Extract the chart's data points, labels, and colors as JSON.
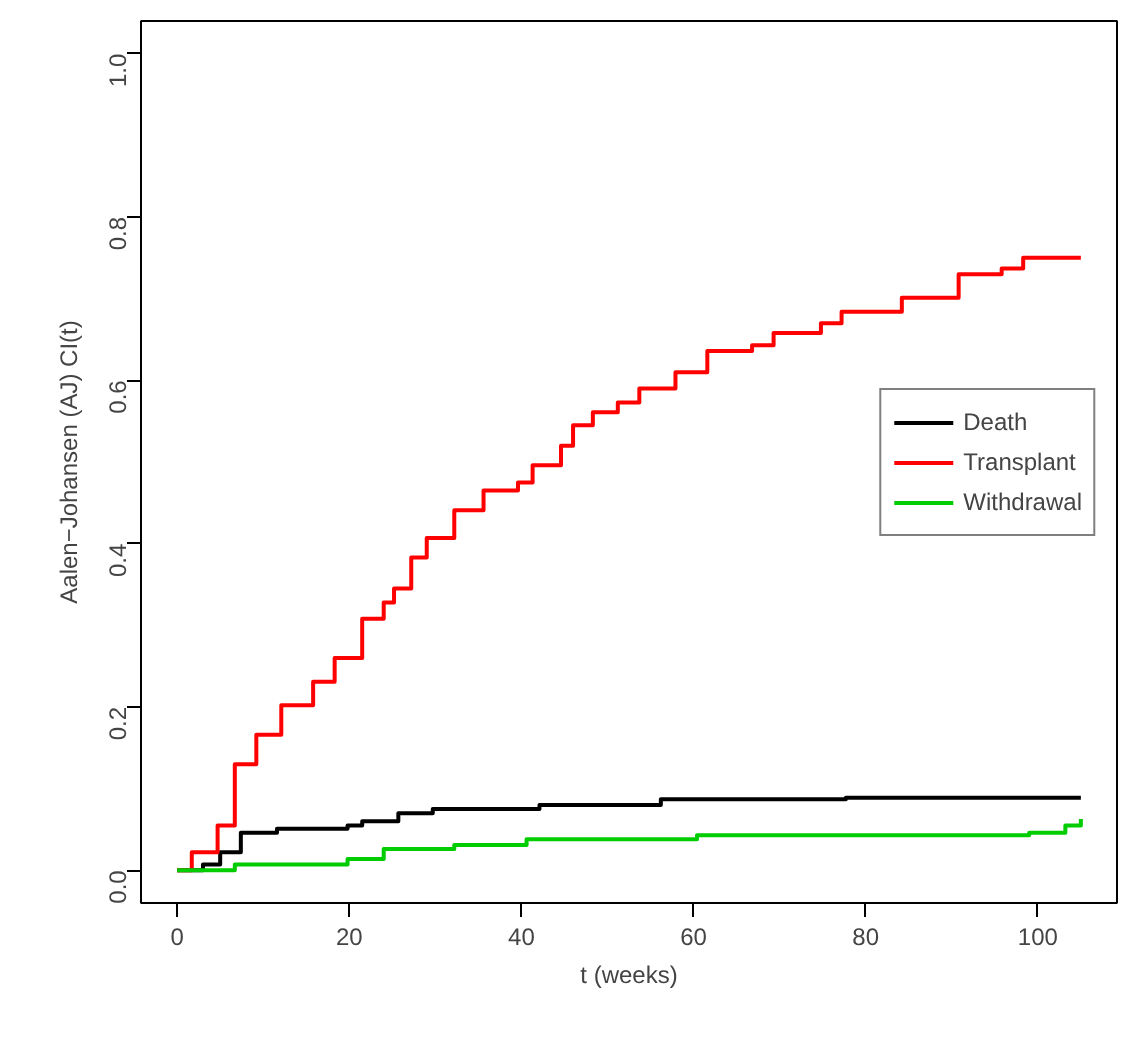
{
  "chart_data": {
    "type": "step",
    "xlabel": "t (weeks)",
    "ylabel": "Aalen−Johansen (AJ) CI(t)",
    "xlim": [
      -4.2,
      109.2
    ],
    "ylim": [
      -0.04,
      1.04
    ],
    "xticks": [
      0,
      20,
      40,
      60,
      80,
      100
    ],
    "yticks": [
      {
        "value": 0,
        "label": "0.0"
      },
      {
        "value": 0.2,
        "label": "0.2"
      },
      {
        "value": 0.4,
        "label": "0.4"
      },
      {
        "value": 0.6,
        "label": "0.6"
      },
      {
        "value": 0.8,
        "label": "0.8"
      },
      {
        "value": 1,
        "label": "1.0"
      }
    ],
    "grid": false,
    "legend": "right",
    "line_style": "solid",
    "marker": "none",
    "series": [
      {
        "name": "Death",
        "color": "#000000",
        "x": [
          0,
          3.0,
          5.0,
          7.4,
          11.6,
          19.8,
          21.5,
          25.7,
          29.7,
          42.1,
          56.2,
          77.7,
          105
        ],
        "values": [
          0,
          0.007,
          0.022,
          0.046,
          0.051,
          0.055,
          0.06,
          0.07,
          0.075,
          0.08,
          0.087,
          0.089,
          0.089
        ]
      },
      {
        "name": "Transplant",
        "color": "#ff0000",
        "x": [
          0,
          1.7,
          4.7,
          6.7,
          9.2,
          12.1,
          15.8,
          18.3,
          21.5,
          24.0,
          25.2,
          27.2,
          29.0,
          32.2,
          35.6,
          39.6,
          41.3,
          44.6,
          46.0,
          48.3,
          51.2,
          53.7,
          57.9,
          61.6,
          66.8,
          69.3,
          74.8,
          77.2,
          84.2,
          90.8,
          95.8,
          98.3,
          105
        ],
        "values": [
          0,
          0.022,
          0.055,
          0.13,
          0.166,
          0.202,
          0.231,
          0.26,
          0.308,
          0.328,
          0.345,
          0.383,
          0.407,
          0.441,
          0.465,
          0.475,
          0.496,
          0.52,
          0.545,
          0.561,
          0.573,
          0.59,
          0.61,
          0.636,
          0.643,
          0.658,
          0.67,
          0.684,
          0.701,
          0.73,
          0.737,
          0.75,
          0.75
        ]
      },
      {
        "name": "Withdrawal",
        "color": "#00cc00",
        "x": [
          0,
          6.7,
          19.8,
          24.0,
          32.2,
          40.6,
          60.4,
          99.0,
          103.2,
          105
        ],
        "values": [
          0,
          0.007,
          0.014,
          0.026,
          0.031,
          0.038,
          0.043,
          0.046,
          0.055,
          0.063
        ]
      }
    ]
  }
}
